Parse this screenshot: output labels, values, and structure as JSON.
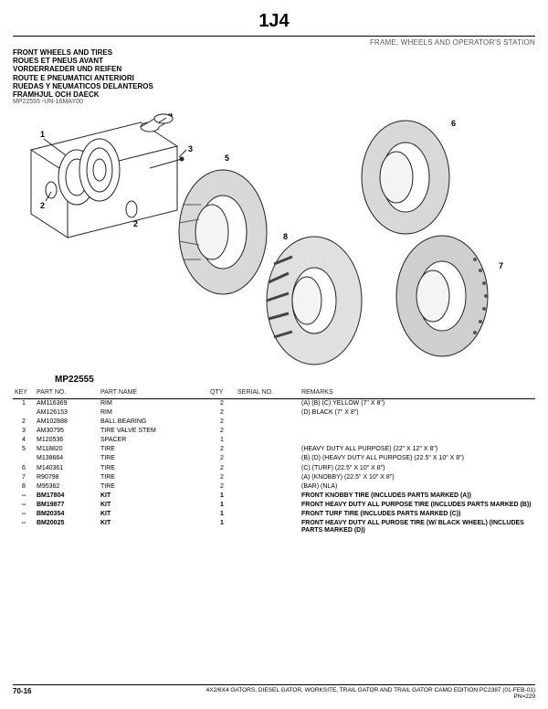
{
  "page_code": "1J4",
  "section_header": "FRAME, WHEELS AND OPERATOR'S STATION",
  "titles": [
    "FRONT WHEELS AND TIRES",
    "ROUES ET PNEUS AVANT",
    "VORDERRAEDER UND REIFEN",
    "ROUTE E PNEUMATICI ANTERIORI",
    "RUEDAS Y NEUMATICOS DELANTEROS",
    "FRAMHJUL OCH DAECK"
  ],
  "title_meta": "MP22555      -UN-16MAY00",
  "mp_label": "MP22555",
  "callouts": [
    "1",
    "2",
    "2",
    "3",
    "4",
    "5",
    "6",
    "7",
    "8"
  ],
  "table": {
    "headers": [
      "KEY",
      "PART NO.",
      "PART NAME",
      "QTY",
      "SERIAL NO.",
      "REMARKS"
    ],
    "rows": [
      {
        "key": "1",
        "part": "AM116369",
        "name": "RIM",
        "qty": "2",
        "serial": "",
        "remarks": "(A) (B) (C) YELLOW (7\" X 8\")",
        "bold": false
      },
      {
        "key": "",
        "part": "AM126153",
        "name": "RIM",
        "qty": "2",
        "serial": "",
        "remarks": "(D) BLACK (7\" X 8\")",
        "bold": false
      },
      {
        "key": "2",
        "part": "AM102888",
        "name": "BALL BEARING",
        "qty": "2",
        "serial": "",
        "remarks": "",
        "bold": false
      },
      {
        "key": "3",
        "part": "AM30795",
        "name": "TIRE VALVE STEM",
        "qty": "2",
        "serial": "",
        "remarks": "",
        "bold": false
      },
      {
        "key": "4",
        "part": "M120536",
        "name": "SPACER",
        "qty": "1",
        "serial": "",
        "remarks": "",
        "bold": false
      },
      {
        "key": "5",
        "part": "M118820",
        "name": "TIRE",
        "qty": "2",
        "serial": "",
        "remarks": "(HEAVY DUTY ALL PURPOSE) (22\" X 12\" X 8\")",
        "bold": false
      },
      {
        "key": "",
        "part": "M138664",
        "name": "TIRE",
        "qty": "2",
        "serial": "",
        "remarks": "(B) (D) (HEAVY DUTY ALL PURPOSE) (22.5\" X 10\" X 8\")",
        "bold": false
      },
      {
        "key": "6",
        "part": "M140361",
        "name": "TIRE",
        "qty": "2",
        "serial": "",
        "remarks": "(C) (TURF) (22.5\" X 10\" X 8\")",
        "bold": false
      },
      {
        "key": "7",
        "part": "R90798",
        "name": "TIRE",
        "qty": "2",
        "serial": "",
        "remarks": "(A) (KNOBBY) (22.5\" X 10\" X 8\")",
        "bold": false
      },
      {
        "key": "8",
        "part": "M95362",
        "name": "TIRE",
        "qty": "2",
        "serial": "",
        "remarks": "(BAR) (NLA)",
        "bold": false
      },
      {
        "key": "--",
        "part": "BM17804",
        "name": "KIT",
        "qty": "1",
        "serial": "",
        "remarks": "FRONT KNOBBY TIRE (INCLUDES PARTS MARKED (A))",
        "bold": true
      },
      {
        "key": "--",
        "part": "BM19877",
        "name": "KIT",
        "qty": "1",
        "serial": "",
        "remarks": "FRONT HEAVY DUTY ALL PURPOSE TIRE (INCLUDES PARTS MARKED (B))",
        "bold": true
      },
      {
        "key": "--",
        "part": "BM20354",
        "name": "KIT",
        "qty": "1",
        "serial": "",
        "remarks": "FRONT TURF TIRE (INCLUDES PARTS MARKED (C))",
        "bold": true
      },
      {
        "key": "--",
        "part": "BM20025",
        "name": "KIT",
        "qty": "1",
        "serial": "",
        "remarks": "FRONT HEAVY DUTY ALL PUROSE TIRE (W/ BLACK WHEEL) (INCLUDES PARTS MARKED (D))",
        "bold": true
      }
    ]
  },
  "footer": {
    "page_num": "70-16",
    "desc": "4X2/6X4 GATORS, DIESEL GATOR, WORKSITE, TRAIL GATOR AND TRAIL GATOR CAMO EDITION    PC2387    (01-FEB-01)",
    "sub": "PN=229"
  },
  "diagram_style": {
    "stroke": "#222222",
    "fill_light": "#ffffff",
    "fill_tread": "#b0b0b0",
    "callout_font": "9"
  }
}
